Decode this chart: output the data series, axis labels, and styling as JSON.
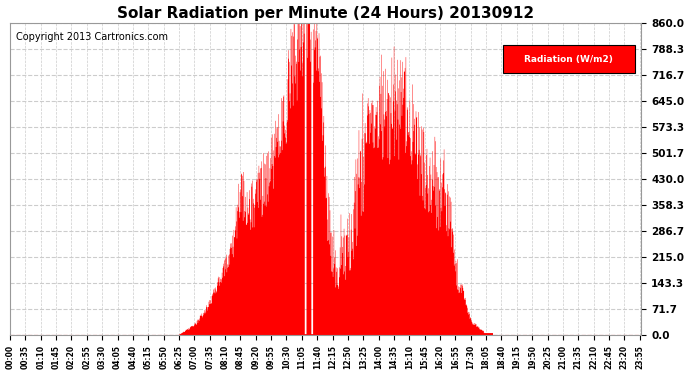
{
  "title": "Solar Radiation per Minute (24 Hours) 20130912",
  "copyright_text": "Copyright 2013 Cartronics.com",
  "legend_label": "Radiation (W/m2)",
  "yticks": [
    0.0,
    71.7,
    143.3,
    215.0,
    286.7,
    358.3,
    430.0,
    501.7,
    573.3,
    645.0,
    716.7,
    788.3,
    860.0
  ],
  "ymax": 860.0,
  "ymin": 0.0,
  "bar_color": "#FF0000",
  "background_color": "#FFFFFF",
  "grid_color": "#AAAAAA",
  "title_fontsize": 11,
  "copyright_fontsize": 7,
  "legend_bg_color": "#FF0000",
  "legend_text_color": "#FFFFFF",
  "xtick_step": 35,
  "total_minutes": 1440
}
